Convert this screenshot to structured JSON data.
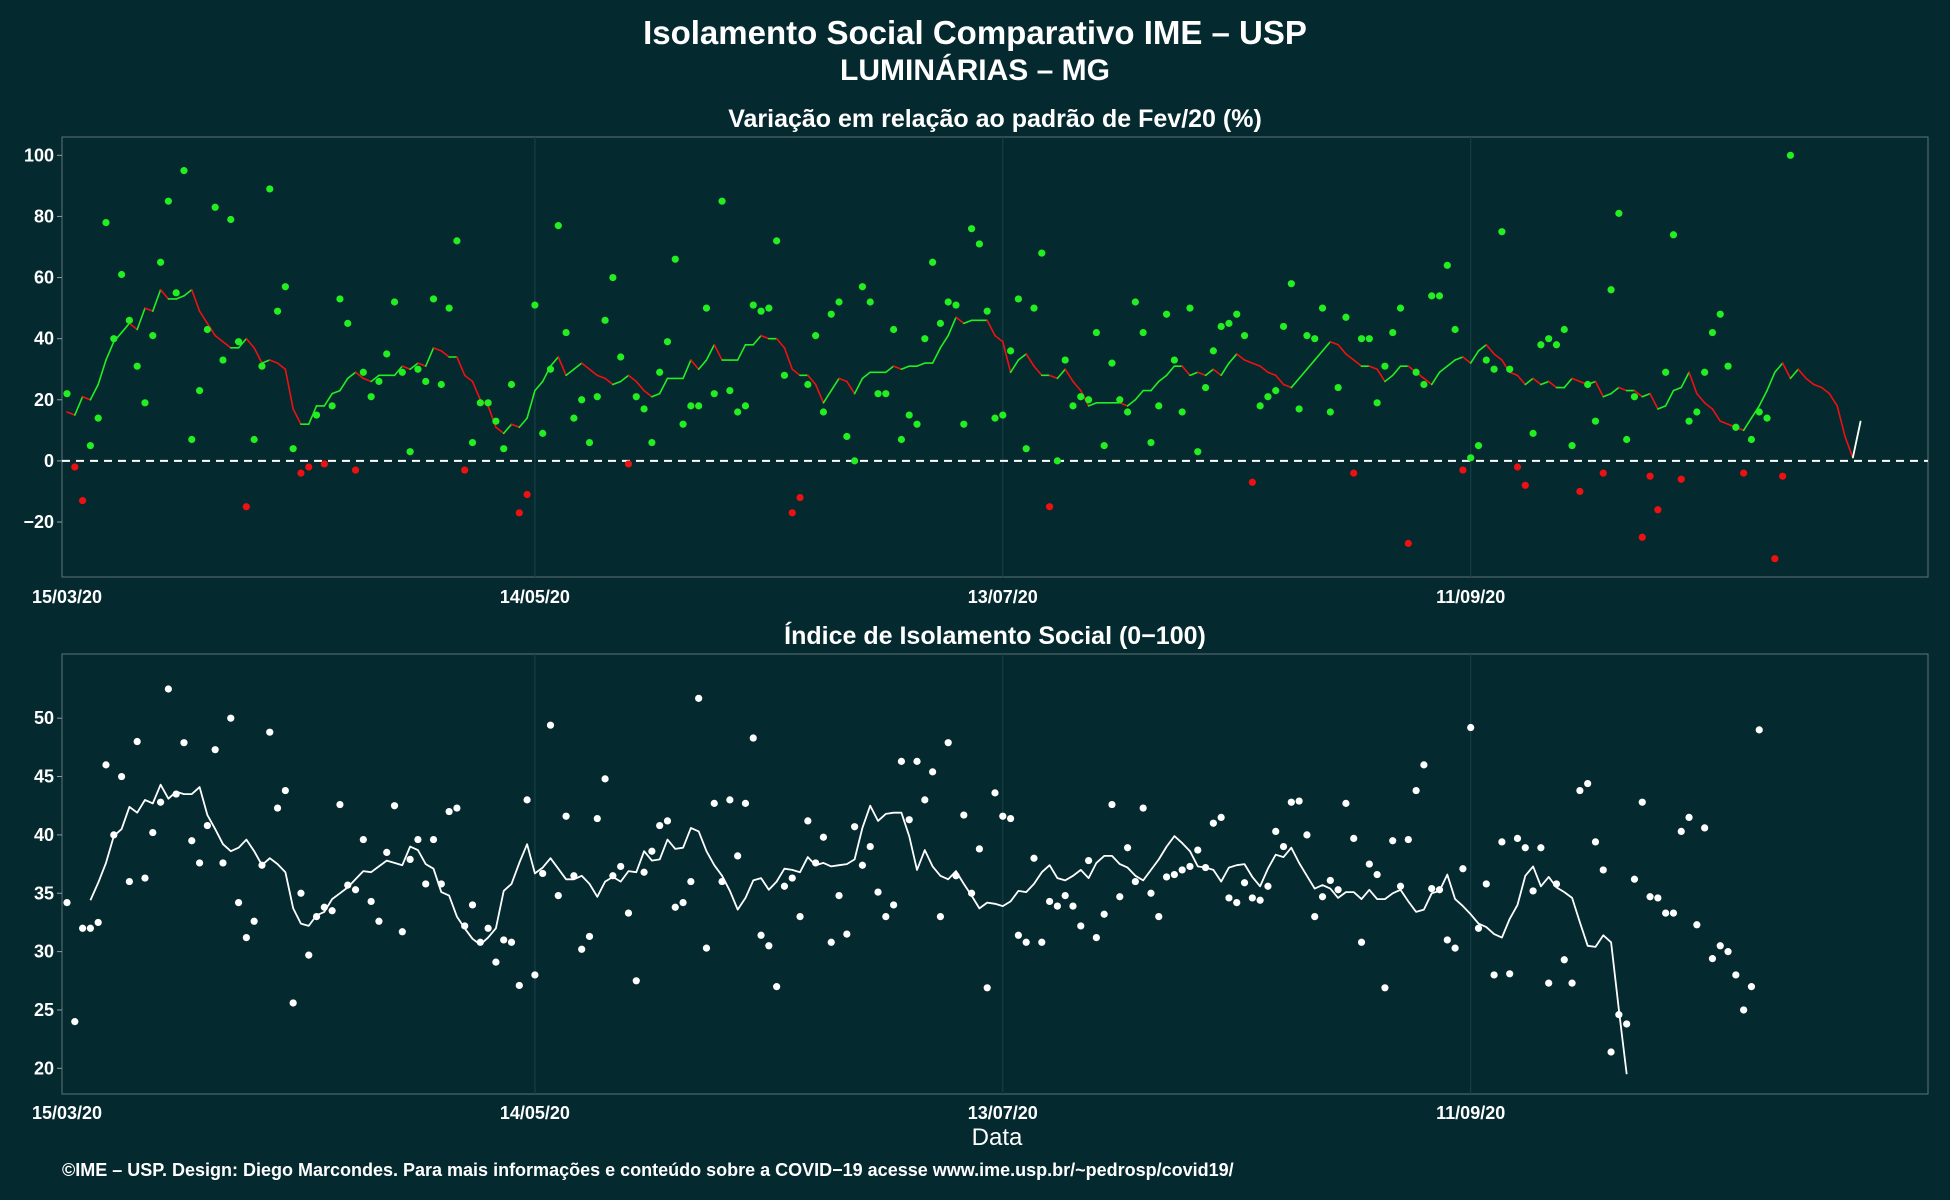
{
  "title_line1": "Isolamento Social Comparativo IME – USP",
  "title_line2": "LUMINÁRIAS – MG",
  "footer": "©IME – USP. Design: Diego Marcondes. Para mais informações e conteúdo sobre a COVID−19 acesse www.ime.usp.br/~pedrosp/covid19/",
  "colors": {
    "background": "#04292f",
    "positive": "#22ee22",
    "negative": "#ee1111",
    "index": "#ffffff"
  },
  "chart_data": [
    {
      "type": "scatter",
      "title": "Variação em relação ao padrão de Fev/20 (%)",
      "xlabel": "",
      "ylabel": "",
      "x_range": [
        "15/03/20",
        "08/11/20"
      ],
      "x_ticks": [
        "15/03/20",
        "14/05/20",
        "13/07/20",
        "11/09/20"
      ],
      "y_ticks": [
        -20,
        0,
        20,
        40,
        60,
        80,
        100
      ],
      "ylim": [
        -38,
        106
      ],
      "reference_line": 0,
      "grid": true,
      "series": [
        {
          "kind": "daily-points",
          "values": [
            22,
            -2,
            -13,
            5,
            14,
            78,
            40,
            61,
            46,
            31,
            19,
            41,
            65,
            85,
            55,
            95,
            7,
            23,
            43,
            83,
            33,
            79,
            39,
            -15,
            7,
            31,
            89,
            49,
            57,
            4,
            -4,
            -2,
            15,
            -1,
            18,
            53,
            45,
            -3,
            29,
            21,
            26,
            35,
            52,
            29,
            3,
            30,
            26,
            53,
            25,
            50,
            72,
            -3,
            6,
            19,
            19,
            13,
            4,
            25,
            -17,
            -11,
            51,
            9,
            30,
            77,
            42,
            14,
            20,
            6,
            21,
            46,
            60,
            34,
            -1,
            21,
            17,
            6,
            29,
            39,
            66,
            12,
            18,
            18,
            50,
            22,
            85,
            23,
            16,
            18,
            51,
            49,
            50,
            72,
            28,
            -17,
            -12,
            25,
            41,
            16,
            48,
            52,
            8,
            0,
            57,
            52,
            22,
            22,
            43,
            7,
            15,
            12,
            40,
            65,
            45,
            52,
            51,
            12,
            76,
            71,
            49,
            14,
            15,
            36,
            53,
            4,
            50,
            68,
            -15,
            0,
            33,
            18,
            21,
            20,
            42,
            5,
            32,
            20,
            16,
            52,
            42,
            6,
            18,
            48,
            33,
            16,
            50,
            3,
            24,
            36,
            44,
            45,
            48,
            41,
            -7,
            18,
            21,
            23,
            44,
            58,
            17,
            41,
            40,
            50,
            16,
            24,
            47,
            -4,
            40,
            40,
            19,
            31,
            42,
            50,
            -27,
            29,
            25,
            54,
            54,
            64,
            43,
            -3,
            1,
            5,
            33,
            30,
            75,
            30,
            -2,
            -8,
            9,
            38,
            40,
            38,
            43,
            5,
            -10,
            25,
            13,
            -4,
            56,
            81,
            7,
            21,
            -25,
            -5,
            -16,
            29,
            74,
            -6,
            13,
            16,
            29,
            42,
            48,
            31,
            11,
            -4,
            7,
            16,
            14,
            -32,
            -5,
            100
          ]
        },
        {
          "kind": "moving-average",
          "values": [
            16,
            15,
            21,
            20,
            25,
            33,
            39,
            42,
            45,
            43,
            50,
            49,
            56,
            53,
            53,
            54,
            56,
            49,
            45,
            41,
            39,
            37,
            37,
            40,
            37,
            32,
            33,
            32,
            30,
            17,
            12,
            12,
            18,
            18,
            22,
            23,
            27,
            29,
            27,
            26,
            28,
            28,
            28,
            31,
            30,
            32,
            31,
            37,
            36,
            34,
            34,
            28,
            26,
            20,
            18,
            11,
            9,
            12,
            11,
            14,
            23,
            26,
            31,
            34,
            28,
            30,
            32,
            30,
            28,
            27,
            25,
            26,
            28,
            26,
            23,
            21,
            22,
            27,
            27,
            27,
            33,
            30,
            33,
            38,
            33,
            33,
            33,
            38,
            38,
            41,
            40,
            40,
            37,
            30,
            28,
            28,
            25,
            19,
            23,
            27,
            26,
            22,
            27,
            29,
            29,
            29,
            31,
            30,
            31,
            31,
            32,
            32,
            37,
            41,
            47,
            45,
            46,
            46,
            46,
            41,
            39,
            29,
            33,
            35,
            31,
            28,
            28,
            27,
            30,
            26,
            23,
            18,
            19,
            19,
            19,
            19,
            18,
            20,
            23,
            23,
            26,
            28,
            31,
            31,
            28,
            29,
            28,
            30,
            28,
            32,
            35,
            33,
            32,
            31,
            29,
            28,
            25,
            24,
            27,
            30,
            33,
            36,
            39,
            38,
            35,
            33,
            31,
            31,
            30,
            26,
            28,
            31,
            31,
            29,
            27,
            25,
            29,
            31,
            33,
            34,
            32,
            36,
            38,
            35,
            33,
            29,
            28,
            25,
            27,
            25,
            26,
            24,
            24,
            27,
            26,
            25,
            26,
            21,
            22,
            24,
            23,
            23,
            21,
            22,
            17,
            18,
            23,
            24,
            29,
            22,
            19,
            17,
            13,
            12,
            11,
            10,
            14,
            18,
            23,
            29,
            32,
            27,
            30,
            27,
            25,
            24,
            22,
            18,
            8,
            1,
            13
          ]
        }
      ]
    },
    {
      "type": "scatter",
      "title": "Índice de Isolamento Social (0−100)",
      "xlabel": "Data",
      "ylabel": "",
      "x_range": [
        "15/03/20",
        "08/11/20"
      ],
      "x_ticks": [
        "15/03/20",
        "14/05/20",
        "13/07/20",
        "11/09/20"
      ],
      "y_ticks": [
        20,
        25,
        30,
        35,
        40,
        45,
        50
      ],
      "ylim": [
        17.8,
        55.5
      ],
      "grid": true,
      "series": [
        {
          "kind": "daily-points",
          "values": [
            34.2,
            24.0,
            32.0,
            32.0,
            32.5,
            46.0,
            40.0,
            45.0,
            36.0,
            48.0,
            36.3,
            40.2,
            42.8,
            52.5,
            43.5,
            47.9,
            39.5,
            37.6,
            40.8,
            47.3,
            37.6,
            50.0,
            34.2,
            31.2,
            32.6,
            37.4,
            48.8,
            42.3,
            43.8,
            25.6,
            35.0,
            29.7,
            33.0,
            33.8,
            33.5,
            42.6,
            35.7,
            35.3,
            39.6,
            34.3,
            32.6,
            38.5,
            42.5,
            31.7,
            37.9,
            39.6,
            35.8,
            39.6,
            35.8,
            42.0,
            42.3,
            32.2,
            34.0,
            30.8,
            32.0,
            29.1,
            31.0,
            30.8,
            27.1,
            43.0,
            28.0,
            36.7,
            49.4,
            34.8,
            41.6,
            36.5,
            30.2,
            31.3,
            41.4,
            44.8,
            36.5,
            37.3,
            33.3,
            27.5,
            36.8,
            38.6,
            40.8,
            41.2,
            33.8,
            34.2,
            36.0,
            51.7,
            30.3,
            42.7,
            36.0,
            43.0,
            38.2,
            42.7,
            48.3,
            31.4,
            30.5,
            27.0,
            35.6,
            36.3,
            33.0,
            41.2,
            37.6,
            39.8,
            30.8,
            34.8,
            31.5,
            40.7,
            37.4,
            39.0,
            35.1,
            33.0,
            34.0,
            46.3,
            41.3,
            46.3,
            43.0,
            45.4,
            33.0,
            47.9,
            36.5,
            41.7,
            35.0,
            38.8,
            26.9,
            43.6,
            41.6,
            41.4,
            31.4,
            30.8,
            38.0,
            30.8,
            34.3,
            33.9,
            34.8,
            33.9,
            32.2,
            37.8,
            31.2,
            33.2,
            42.6,
            34.7,
            38.9,
            36.0,
            42.3,
            35.0,
            33.0,
            36.4,
            36.6,
            37.0,
            37.3,
            38.7,
            37.2,
            41.0,
            41.5,
            34.6,
            34.2,
            35.9,
            34.6,
            34.4,
            35.6,
            40.3,
            39.0,
            42.8,
            42.9,
            40.0,
            33.0,
            34.7,
            36.1,
            35.3,
            42.7,
            39.7,
            30.8,
            37.5,
            36.6,
            26.9,
            39.5,
            35.6,
            39.6,
            43.8,
            46.0,
            35.4,
            35.3,
            31.0,
            30.3,
            37.1,
            49.2,
            32.0,
            35.8,
            28.0,
            39.4,
            28.1,
            39.7,
            38.9,
            35.2,
            38.9,
            27.3,
            35.8,
            29.3,
            27.3,
            43.8,
            44.4,
            39.4,
            37.0,
            21.4,
            24.6,
            23.8,
            36.2,
            42.8,
            34.7,
            34.6,
            33.3,
            33.3,
            40.3,
            41.5,
            32.3,
            40.6,
            29.4,
            30.5,
            30.0,
            28.0,
            25.0,
            27.0,
            49.0
          ]
        },
        {
          "kind": "moving-average",
          "values": [
            null,
            null,
            null,
            34.4,
            35.9,
            37.6,
            39.9,
            40.5,
            42.4,
            41.9,
            43.0,
            42.7,
            44.3,
            43.1,
            43.7,
            43.5,
            43.5,
            44.1,
            41.7,
            40.5,
            39.2,
            38.6,
            38.9,
            39.6,
            38.6,
            37.4,
            38.0,
            37.5,
            36.8,
            33.7,
            32.4,
            32.2,
            33.1,
            33.4,
            34.5,
            35.0,
            35.5,
            36.2,
            36.9,
            36.8,
            37.3,
            37.8,
            37.6,
            37.4,
            39.0,
            38.7,
            37.5,
            37.1,
            35.1,
            34.8,
            33.0,
            32.0,
            31.1,
            30.6,
            31.2,
            32.0,
            35.2,
            35.8,
            37.6,
            39.2,
            36.7,
            37.2,
            38.0,
            37.1,
            36.2,
            36.2,
            36.5,
            35.8,
            34.7,
            36.0,
            36.4,
            36.0,
            36.9,
            36.8,
            38.6,
            37.8,
            37.9,
            39.6,
            38.8,
            38.9,
            40.6,
            40.3,
            38.6,
            37.4,
            36.5,
            35.2,
            33.6,
            34.6,
            36.1,
            36.3,
            35.3,
            36.0,
            37.1,
            37.0,
            36.8,
            38.1,
            37.4,
            37.6,
            37.3,
            37.4,
            37.5,
            37.9,
            40.6,
            42.5,
            41.2,
            41.8,
            41.9,
            41.9,
            39.9,
            37.0,
            38.7,
            37.3,
            36.5,
            36.2,
            36.9,
            35.8,
            34.8,
            33.7,
            34.2,
            34.1,
            33.9,
            34.3,
            35.2,
            35.1,
            35.8,
            36.8,
            37.4,
            36.3,
            36.1,
            36.5,
            37.0,
            36.3,
            37.6,
            38.2,
            38.2,
            37.5,
            37.2,
            36.5,
            36.1,
            37.0,
            37.9,
            39.0,
            39.9,
            39.3,
            38.6,
            37.3,
            37.2,
            37.0,
            36.0,
            37.2,
            37.4,
            37.5,
            36.4,
            35.6,
            37.1,
            38.3,
            38.1,
            38.9,
            37.6,
            36.5,
            35.4,
            35.7,
            35.4,
            34.6,
            35.1,
            35.1,
            34.5,
            35.3,
            34.5,
            34.5,
            35.0,
            35.3,
            34.3,
            33.4,
            33.6,
            35.0,
            35.2,
            36.6,
            34.5,
            33.9,
            33.2,
            32.4,
            32.1,
            31.5,
            31.2,
            32.8,
            34.0,
            36.5,
            37.3,
            35.6,
            36.4,
            35.5,
            35.1,
            34.6,
            32.5,
            30.5,
            30.4,
            31.4,
            30.8,
            25.0,
            19.5
          ]
        }
      ]
    }
  ]
}
